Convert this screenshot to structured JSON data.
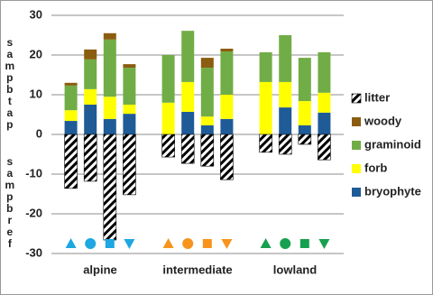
{
  "chart_data": {
    "type": "grouped-stacked-bar",
    "categories": [
      "alpine",
      "intermediate",
      "lowland"
    ],
    "y_label_top": "sampbtap",
    "y_label_bottom": "sampbref",
    "ylim": [
      -30,
      30
    ],
    "yticks": [
      -30,
      -20,
      -10,
      0,
      10,
      20,
      30
    ],
    "grid": true,
    "legend": "right",
    "markers": {
      "shapes": [
        "triangle-up",
        "circle",
        "square",
        "triangle-down"
      ],
      "colors": [
        "#1ea7e1",
        "#f7941d",
        "#17a04f"
      ],
      "y": -27.5
    },
    "series": [
      {
        "name": "bryophyte",
        "color": "#1f5b97",
        "values": [
          [
            3.4,
            7.5,
            3.9,
            5.2
          ],
          [
            0,
            5.7,
            2.3,
            3.9
          ],
          [
            0,
            6.8,
            2.3,
            5.5
          ]
        ]
      },
      {
        "name": "forb",
        "color": "#ffff00",
        "values": [
          [
            2.7,
            3.9,
            5.6,
            2.3
          ],
          [
            8.0,
            7.5,
            2.2,
            6.1
          ],
          [
            13.2,
            6.4,
            6.1,
            5.0
          ]
        ]
      },
      {
        "name": "graminoid",
        "color": "#71ad46",
        "values": [
          [
            6.2,
            7.5,
            14.4,
            9.3
          ],
          [
            12.0,
            12.9,
            12.3,
            10.9
          ],
          [
            7.5,
            11.8,
            10.9,
            10.2
          ]
        ]
      },
      {
        "name": "woody",
        "color": "#8b5d10",
        "values": [
          [
            0.7,
            2.5,
            1.6,
            0.9
          ],
          [
            0,
            0,
            2.5,
            0.7
          ],
          [
            0,
            0,
            0,
            0
          ]
        ]
      },
      {
        "name": "litter",
        "color": "#000000",
        "pattern": "hatch",
        "values": [
          [
            -13.6,
            -11.8,
            -26.6,
            -15.2
          ],
          [
            -5.7,
            -7.3,
            -8.0,
            -11.4
          ],
          [
            -4.5,
            -5.0,
            -2.5,
            -6.4
          ]
        ]
      }
    ]
  }
}
